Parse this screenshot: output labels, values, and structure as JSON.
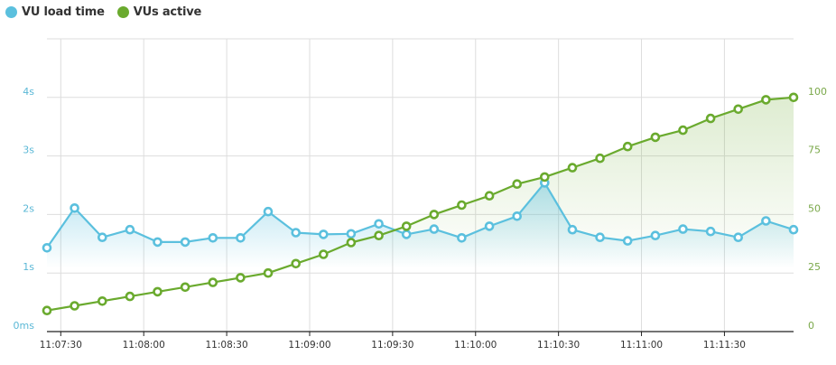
{
  "legend": {
    "items": [
      {
        "label": "VU load time",
        "color": "#5bc0de"
      },
      {
        "label": "VUs active",
        "color": "#6aaa2e"
      }
    ]
  },
  "chart_data": {
    "type": "line",
    "title": "",
    "xlabel": "",
    "ylabel": "VU load time",
    "y2label": "VUs active",
    "grid": true,
    "legend_position": "top-left",
    "x_ticks": [
      "11:07:30",
      "11:08:00",
      "11:08:30",
      "11:09:00",
      "11:09:30",
      "11:10:00",
      "11:10:30",
      "11:11:00",
      "11:11:30"
    ],
    "y_left_ticks": [
      "0ms",
      "1s",
      "2s",
      "3s",
      "4s"
    ],
    "y_right_ticks": [
      "0",
      "25",
      "50",
      "75",
      "100"
    ],
    "ylim_left_ms": [
      0,
      5000
    ],
    "ylim_right": [
      0,
      125
    ],
    "x": [
      "11:07:25",
      "11:07:35",
      "11:07:45",
      "11:07:55",
      "11:08:05",
      "11:08:15",
      "11:08:25",
      "11:08:35",
      "11:08:45",
      "11:08:55",
      "11:09:05",
      "11:09:15",
      "11:09:25",
      "11:09:35",
      "11:09:45",
      "11:09:55",
      "11:10:05",
      "11:10:15",
      "11:10:25",
      "11:10:35",
      "11:10:45",
      "11:10:55",
      "11:11:05",
      "11:11:15",
      "11:11:25",
      "11:11:35",
      "11:11:45",
      "11:11:55"
    ],
    "series": [
      {
        "name": "VU load time",
        "axis": "left",
        "unit": "ms",
        "color": "#5bc0de",
        "values": [
          1430,
          2110,
          1610,
          1740,
          1530,
          1530,
          1600,
          1600,
          2050,
          1690,
          1660,
          1670,
          1840,
          1660,
          1750,
          1600,
          1800,
          1970,
          2540,
          1740,
          1610,
          1550,
          1640,
          1750,
          1710,
          1610,
          1890,
          1740
        ]
      },
      {
        "name": "VUs active",
        "axis": "right",
        "unit": "VUs",
        "color": "#6aaa2e",
        "values": [
          9,
          11,
          13,
          15,
          17,
          19,
          21,
          23,
          25,
          29,
          33,
          38,
          41,
          45,
          50,
          54,
          58,
          63,
          66,
          70,
          74,
          79,
          83,
          86,
          91,
          95,
          99,
          100
        ]
      }
    ]
  }
}
